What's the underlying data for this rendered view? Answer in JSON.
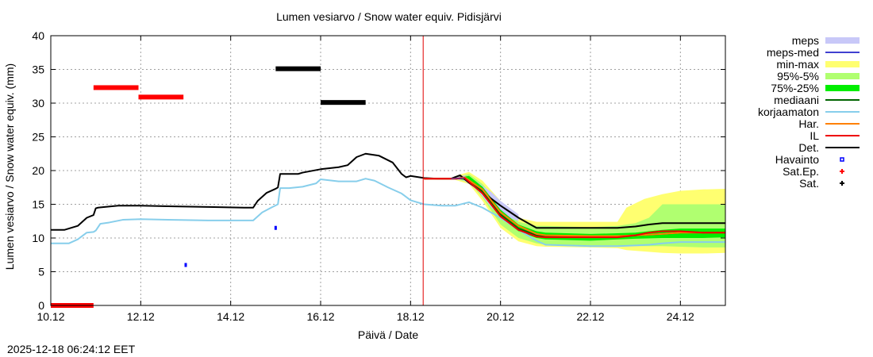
{
  "chart_data": {
    "type": "line",
    "title": "Lumen vesiarvo / Snow water equiv.  Pidisjärvi",
    "xlabel": "Päivä / Date",
    "ylabel": "Lumen vesiarvo / Snow water equiv. (mm)",
    "timestamp": "2025-12-18 06:24:12 EET",
    "x_unit": "day of December",
    "xlim": [
      10,
      25
    ],
    "ylim": [
      0,
      40
    ],
    "grid": true,
    "legend_position": "right",
    "x_ticks": [
      {
        "value": 10,
        "label": "10.12"
      },
      {
        "value": 12,
        "label": "12.12"
      },
      {
        "value": 14,
        "label": "14.12"
      },
      {
        "value": 16,
        "label": "16.12"
      },
      {
        "value": 18,
        "label": "18.12"
      },
      {
        "value": 20,
        "label": "20.12"
      },
      {
        "value": 22,
        "label": "22.12"
      },
      {
        "value": 24,
        "label": "24.12"
      }
    ],
    "y_ticks": [
      0,
      5,
      10,
      15,
      20,
      25,
      30,
      35,
      40
    ],
    "now_line": {
      "x": 18.28,
      "color": "#e00000"
    },
    "legend": [
      {
        "label": "meps",
        "kind": "band",
        "color": "#c8c8f8"
      },
      {
        "label": "meps-med",
        "kind": "line",
        "color": "#4040d0"
      },
      {
        "label": "min-max",
        "kind": "band",
        "color": "#ffff70"
      },
      {
        "label": "95%-5%",
        "kind": "band",
        "color": "#b0ff70"
      },
      {
        "label": "75%-25%",
        "kind": "band",
        "color": "#00ee00"
      },
      {
        "label": "mediaani",
        "kind": "line",
        "color": "#006400"
      },
      {
        "label": "korjaamaton",
        "kind": "line",
        "color": "#87ceeb"
      },
      {
        "label": "Har.",
        "kind": "line",
        "color": "#ff8000"
      },
      {
        "label": "IL",
        "kind": "line",
        "color": "#ee0000"
      },
      {
        "label": "Det.",
        "kind": "line",
        "color": "#000000"
      },
      {
        "label": "Havainto",
        "kind": "point",
        "color": "#0000ff"
      },
      {
        "label": "Sat.Ep.",
        "kind": "point",
        "color": "#ff0000"
      },
      {
        "label": "Sat.",
        "kind": "point",
        "color": "#000000"
      }
    ],
    "bands": [
      {
        "name": "min-max",
        "color": "#ffff70",
        "x": [
          19.0,
          19.3,
          19.6,
          20.0,
          20.4,
          20.8,
          21.0,
          22.0,
          22.6,
          22.8,
          23.2,
          23.6,
          24.0,
          24.5,
          25.0
        ],
        "lower": [
          18.6,
          18.0,
          15.5,
          11.5,
          9.5,
          8.8,
          8.7,
          8.6,
          8.5,
          8.2,
          8.0,
          7.8,
          7.7,
          7.7,
          7.8
        ],
        "upper": [
          19.2,
          19.8,
          18.5,
          15.5,
          13.0,
          12.4,
          12.4,
          12.4,
          12.4,
          14.5,
          15.8,
          16.5,
          17.0,
          17.2,
          17.3
        ]
      },
      {
        "name": "95%-5%",
        "color": "#b0ff70",
        "x": [
          19.0,
          19.3,
          19.6,
          20.0,
          20.4,
          20.8,
          21.0,
          22.0,
          22.6,
          23.0,
          23.3,
          23.6,
          24.0,
          24.5,
          25.0
        ],
        "lower": [
          18.7,
          18.3,
          16.0,
          12.0,
          10.0,
          9.2,
          9.0,
          8.9,
          8.9,
          8.8,
          8.8,
          8.8,
          8.7,
          8.6,
          8.6
        ],
        "upper": [
          19.0,
          19.5,
          18.0,
          14.8,
          12.4,
          11.8,
          11.8,
          11.6,
          11.8,
          12.2,
          13.0,
          15.0,
          15.0,
          15.0,
          15.0
        ]
      },
      {
        "name": "meps",
        "color": "#c8c8f8",
        "x": [
          18.9,
          19.2,
          19.5,
          19.8,
          20.0,
          20.2,
          20.4
        ],
        "lower": [
          18.8,
          18.5,
          17.0,
          14.5,
          13.5,
          13.0,
          12.5
        ],
        "upper": [
          18.9,
          19.3,
          18.2,
          16.8,
          15.5,
          14.5,
          13.5
        ]
      },
      {
        "name": "75%-25%",
        "color": "#00ee00",
        "x": [
          19.0,
          19.3,
          19.6,
          20.0,
          20.4,
          20.8,
          21.0,
          22.0,
          22.6,
          23.0,
          23.6,
          24.0,
          24.5,
          25.0
        ],
        "lower": [
          18.8,
          18.5,
          16.5,
          13.0,
          11.0,
          10.0,
          9.8,
          9.6,
          9.8,
          9.9,
          10.0,
          10.0,
          10.0,
          10.1
        ],
        "upper": [
          18.9,
          19.2,
          17.6,
          14.2,
          12.0,
          11.0,
          10.8,
          10.6,
          10.7,
          10.8,
          11.2,
          11.4,
          11.4,
          11.4
        ]
      }
    ],
    "series": [
      {
        "name": "korjaamaton",
        "color": "#87ceeb",
        "width": 2,
        "x": [
          10.0,
          10.4,
          10.6,
          10.8,
          10.95,
          11.0,
          11.1,
          11.3,
          11.6,
          12.0,
          12.6,
          13.5,
          14.3,
          14.5,
          14.7,
          14.9,
          15.05,
          15.1,
          15.3,
          15.6,
          15.9,
          16.0,
          16.4,
          16.8,
          17.0,
          17.2,
          17.5,
          17.8,
          18.0,
          18.3,
          18.7,
          19.0,
          19.3,
          19.6,
          20.0,
          20.4,
          20.8,
          21.0,
          22.0,
          22.6,
          23.0,
          23.3,
          23.6,
          24.0,
          24.5,
          25.0
        ],
        "y": [
          9.2,
          9.2,
          9.8,
          10.8,
          10.9,
          11.1,
          12.1,
          12.3,
          12.7,
          12.8,
          12.7,
          12.6,
          12.6,
          12.6,
          13.8,
          14.5,
          15.0,
          17.4,
          17.4,
          17.6,
          18.1,
          18.7,
          18.4,
          18.4,
          18.8,
          18.5,
          17.5,
          16.6,
          15.6,
          15.0,
          14.8,
          14.8,
          15.3,
          14.5,
          13.0,
          11.2,
          9.6,
          9.0,
          8.8,
          8.8,
          8.9,
          9.0,
          9.2,
          9.4,
          9.4,
          9.4
        ]
      },
      {
        "name": "Det.",
        "color": "#000000",
        "width": 2,
        "x": [
          10.0,
          10.3,
          10.6,
          10.8,
          10.95,
          11.0,
          11.05,
          11.2,
          11.5,
          12.0,
          12.6,
          13.5,
          14.3,
          14.5,
          14.6,
          14.8,
          15.0,
          15.05,
          15.1,
          15.5,
          15.6,
          16.0,
          16.4,
          16.6,
          16.8,
          17.0,
          17.3,
          17.6,
          17.8,
          17.9,
          18.0,
          18.3,
          18.6,
          18.9,
          19.1,
          19.3,
          19.6,
          20.0,
          20.4,
          20.8,
          21.0,
          21.5,
          22.0,
          22.6,
          23.0,
          23.3,
          23.6,
          24.0,
          24.5,
          25.0
        ],
        "y": [
          11.2,
          11.2,
          11.8,
          13.0,
          13.4,
          14.4,
          14.5,
          14.6,
          14.8,
          14.8,
          14.7,
          14.6,
          14.5,
          14.5,
          15.5,
          16.7,
          17.3,
          17.5,
          19.5,
          19.5,
          19.7,
          20.2,
          20.5,
          20.8,
          22.0,
          22.5,
          22.2,
          21.2,
          19.5,
          19.0,
          19.2,
          18.9,
          18.8,
          18.8,
          19.3,
          18.2,
          16.8,
          14.8,
          13.0,
          11.5,
          11.5,
          11.5,
          11.5,
          11.5,
          11.7,
          12.0,
          12.2,
          12.2,
          12.2,
          12.2
        ]
      },
      {
        "name": "mediaani",
        "color": "#006400",
        "width": 2,
        "x": [
          18.3,
          19.0,
          19.2,
          19.6,
          20.0,
          20.4,
          20.8,
          21.0,
          22.0,
          22.6,
          23.0,
          23.6,
          24.0,
          24.5,
          25.0
        ],
        "y": [
          18.8,
          18.8,
          18.9,
          16.9,
          13.5,
          11.4,
          10.4,
          10.3,
          10.2,
          10.3,
          10.4,
          10.6,
          10.8,
          10.8,
          10.8
        ]
      },
      {
        "name": "Har.",
        "color": "#ff8000",
        "width": 2,
        "x": [
          18.3,
          19.0,
          19.2,
          19.6,
          20.0,
          20.4,
          20.8,
          21.0,
          22.0,
          22.6,
          23.0,
          23.6,
          24.0,
          24.5,
          25.0
        ],
        "y": [
          18.8,
          18.8,
          19.0,
          17.2,
          13.8,
          11.8,
          10.6,
          10.4,
          10.3,
          10.3,
          10.4,
          10.6,
          10.8,
          10.8,
          10.8
        ]
      },
      {
        "name": "IL",
        "color": "#ee0000",
        "width": 2,
        "x": [
          18.3,
          19.0,
          19.2,
          19.6,
          20.0,
          20.4,
          20.8,
          21.0,
          22.0,
          22.6,
          23.0,
          23.3,
          23.6,
          24.0,
          24.5,
          25.0
        ],
        "y": [
          18.8,
          18.8,
          18.9,
          16.6,
          13.2,
          11.2,
          10.2,
          10.1,
          10.1,
          10.1,
          10.4,
          10.8,
          11.0,
          11.0,
          10.8,
          10.8
        ]
      },
      {
        "name": "meps-med",
        "color": "#4040d0",
        "width": 1,
        "x": [
          18.9,
          19.2
        ],
        "y": [
          18.8,
          18.9
        ]
      }
    ],
    "points": [
      {
        "series": "Havainto",
        "color": "#0000ff",
        "x": 13.0,
        "y": 6.0
      },
      {
        "series": "Havainto",
        "color": "#0000ff",
        "x": 15.0,
        "y": 11.5
      }
    ],
    "segments": [
      {
        "series": "Sat.Ep.",
        "color": "#ff0000",
        "x0": 10.0,
        "x1": 10.95,
        "y": 0.0
      },
      {
        "series": "Sat.Ep.",
        "color": "#ff0000",
        "x0": 10.95,
        "x1": 11.95,
        "y": 32.3
      },
      {
        "series": "Sat.Ep.",
        "color": "#ff0000",
        "x0": 11.95,
        "x1": 12.95,
        "y": 30.9
      },
      {
        "series": "Sat.",
        "color": "#000000",
        "x0": 15.0,
        "x1": 16.0,
        "y": 35.1
      },
      {
        "series": "Sat.",
        "color": "#000000",
        "x0": 16.0,
        "x1": 17.0,
        "y": 30.1
      }
    ]
  }
}
